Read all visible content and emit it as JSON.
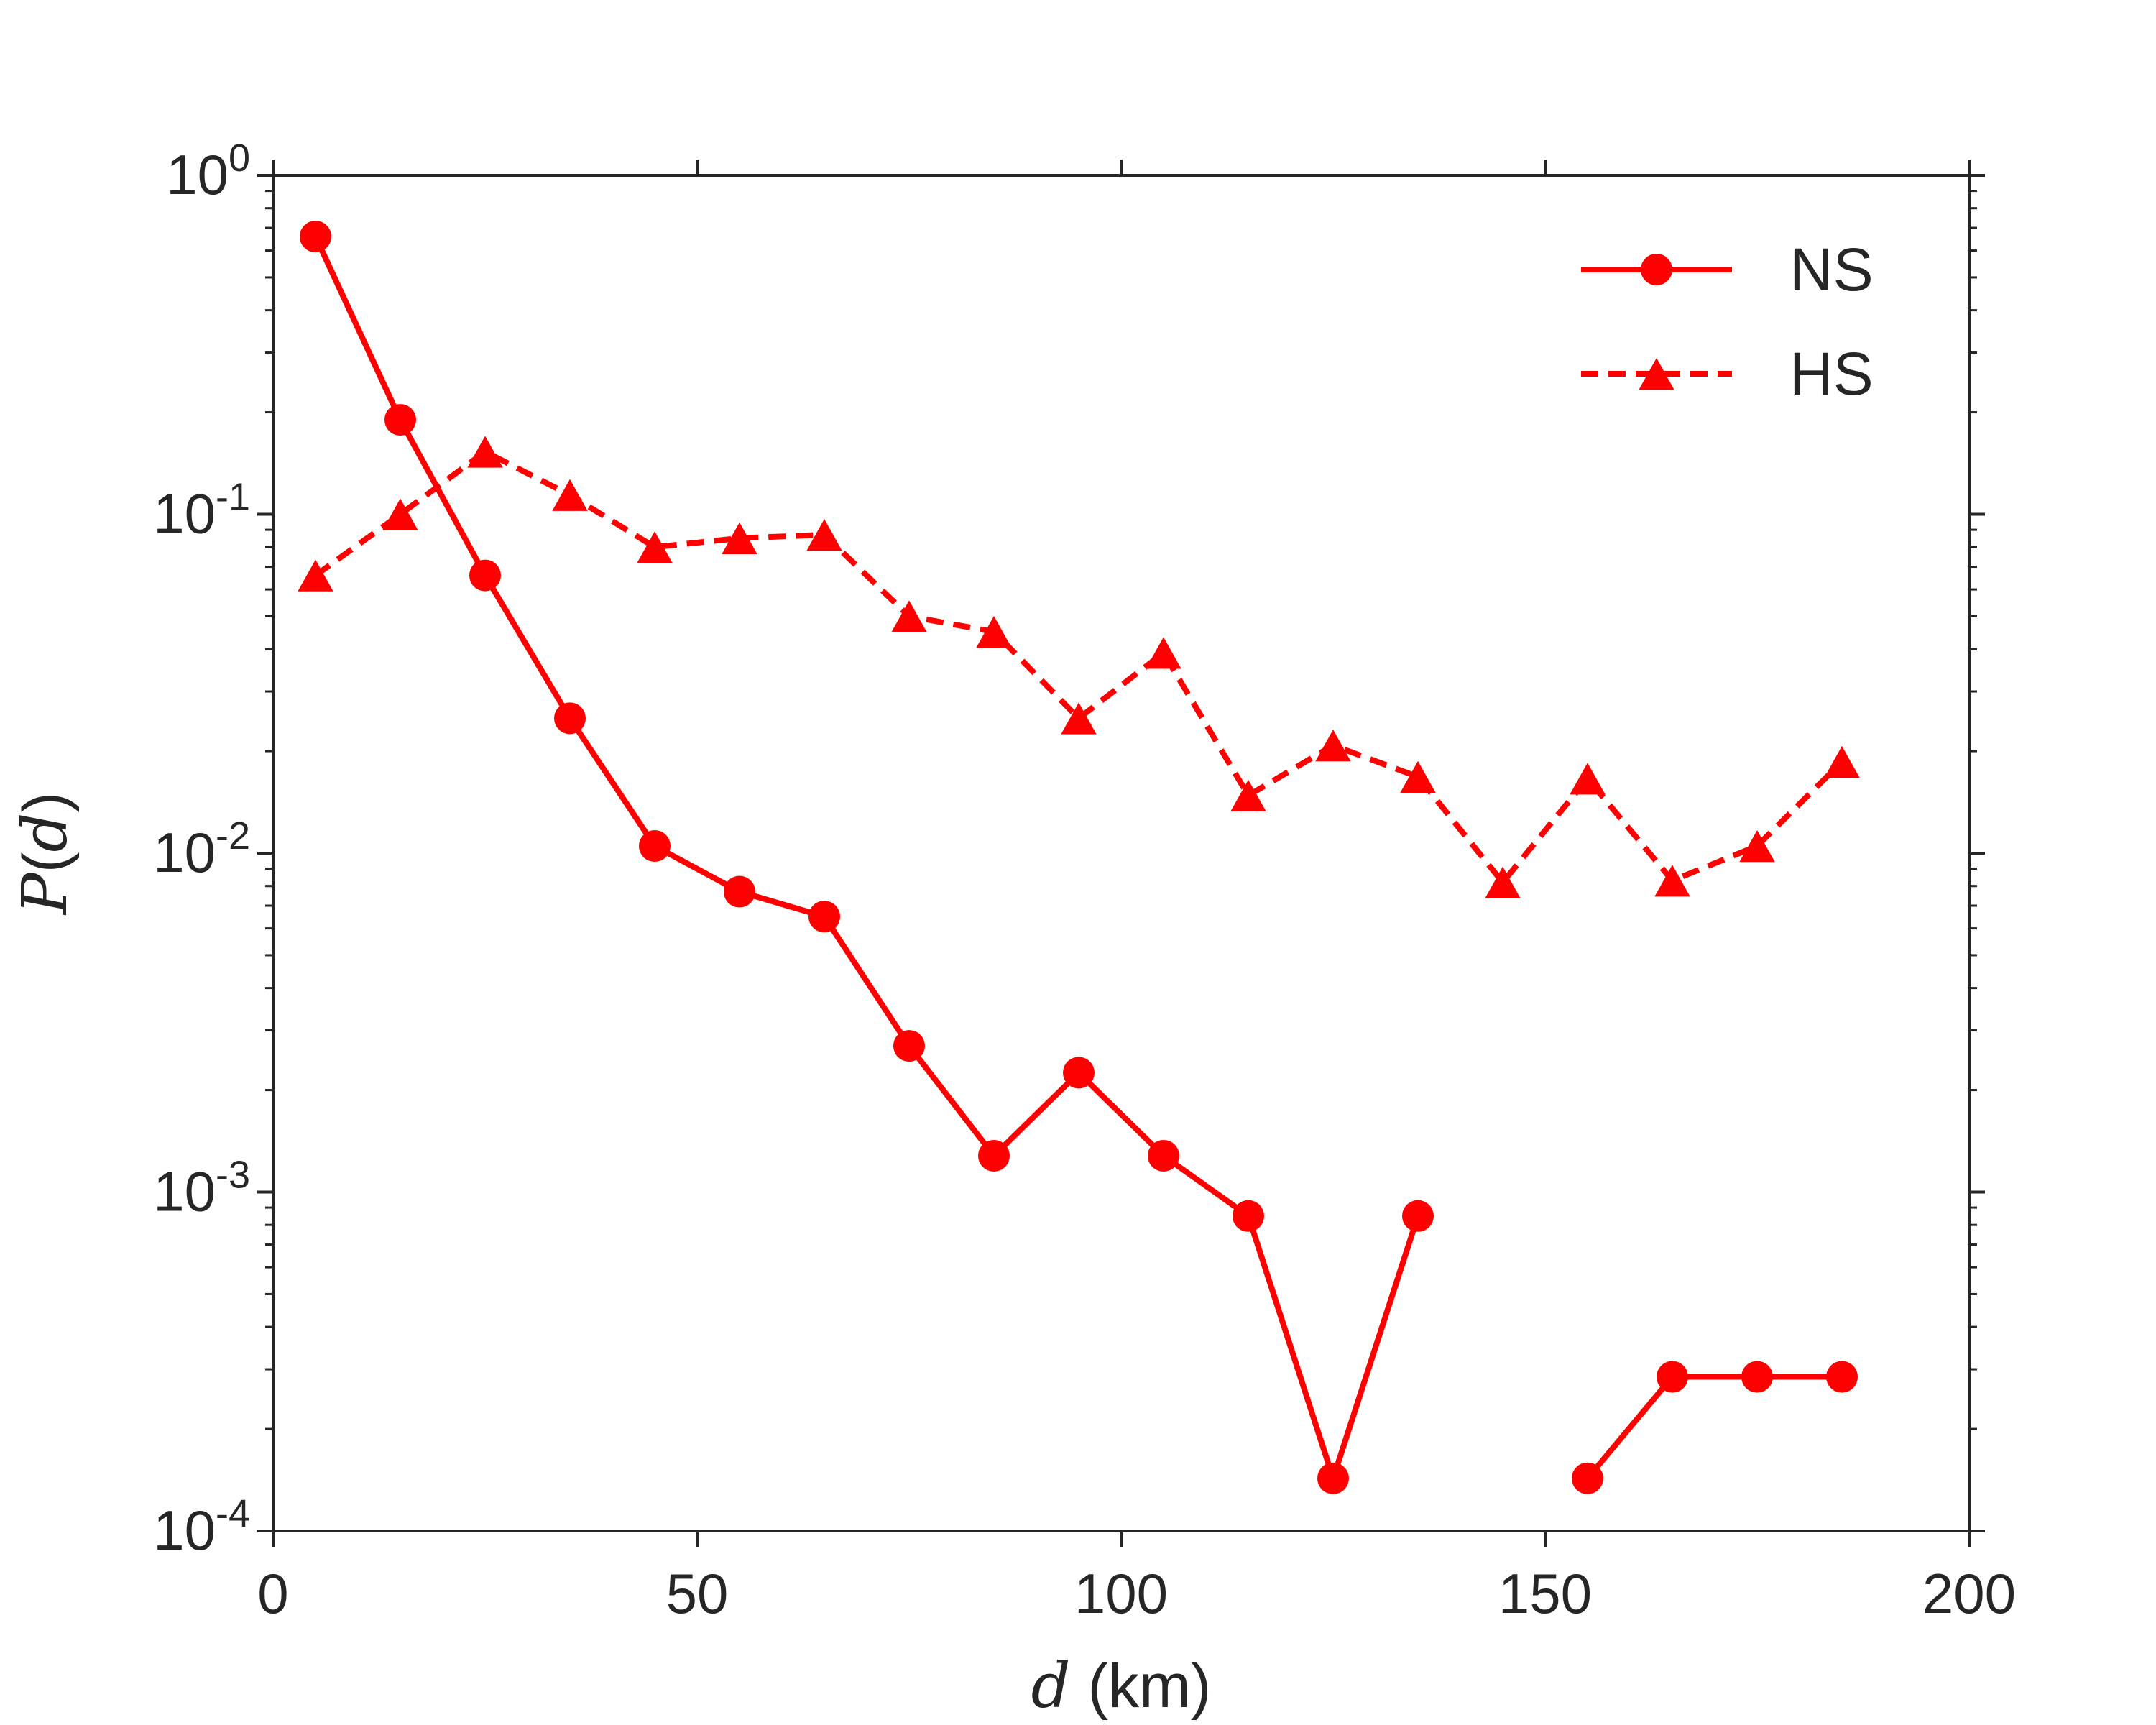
{
  "chart_data": {
    "type": "line",
    "xlabel_var": "d",
    "xlabel_unit": " (km)",
    "ylabel_var": "P",
    "ylabel_arg": "d",
    "xlim": [
      0,
      200
    ],
    "ylim": [
      0.0001,
      1
    ],
    "yscale": "log",
    "grid": false,
    "legend_position": "top-right",
    "x_ticks": [
      {
        "value": 0,
        "label": "0"
      },
      {
        "value": 50,
        "label": "50"
      },
      {
        "value": 100,
        "label": "100"
      },
      {
        "value": 150,
        "label": "150"
      },
      {
        "value": 200,
        "label": "200"
      }
    ],
    "y_ticks": [
      {
        "value": 1,
        "base": "10",
        "exp": "0"
      },
      {
        "value": 0.1,
        "base": "10",
        "exp": "-1"
      },
      {
        "value": 0.01,
        "base": "10",
        "exp": "-2"
      },
      {
        "value": 0.001,
        "base": "10",
        "exp": "-3"
      },
      {
        "value": 0.0001,
        "base": "10",
        "exp": "-4"
      }
    ],
    "series": [
      {
        "name": "NS",
        "color": "#ff0000",
        "line_style": "solid",
        "marker": "circle",
        "points": [
          {
            "x": 5,
            "y": 0.66
          },
          {
            "x": 15,
            "y": 0.19
          },
          {
            "x": 25,
            "y": 0.066
          },
          {
            "x": 35,
            "y": 0.025
          },
          {
            "x": 45,
            "y": 0.0105
          },
          {
            "x": 55,
            "y": 0.0077
          },
          {
            "x": 65,
            "y": 0.0065
          },
          {
            "x": 75,
            "y": 0.0027
          },
          {
            "x": 85,
            "y": 0.00128
          },
          {
            "x": 95,
            "y": 0.00225
          },
          {
            "x": 105,
            "y": 0.00128
          },
          {
            "x": 115,
            "y": 0.00085
          },
          {
            "x": 125,
            "y": 0.000143
          },
          {
            "x": 135,
            "y": 0.00085
          },
          {
            "x": 145,
            "y": null
          },
          {
            "x": 155,
            "y": 0.000143
          },
          {
            "x": 165,
            "y": 0.000285
          },
          {
            "x": 175,
            "y": 0.000285
          },
          {
            "x": 185,
            "y": 0.000285
          }
        ]
      },
      {
        "name": "HS",
        "color": "#ff0000",
        "line_style": "dashed",
        "marker": "triangle",
        "points": [
          {
            "x": 5,
            "y": 0.066
          },
          {
            "x": 15,
            "y": 0.1
          },
          {
            "x": 25,
            "y": 0.153
          },
          {
            "x": 35,
            "y": 0.114
          },
          {
            "x": 45,
            "y": 0.08
          },
          {
            "x": 55,
            "y": 0.085
          },
          {
            "x": 65,
            "y": 0.087
          },
          {
            "x": 75,
            "y": 0.05
          },
          {
            "x": 85,
            "y": 0.045
          },
          {
            "x": 95,
            "y": 0.025
          },
          {
            "x": 105,
            "y": 0.039
          },
          {
            "x": 115,
            "y": 0.0148
          },
          {
            "x": 125,
            "y": 0.0208
          },
          {
            "x": 135,
            "y": 0.0168
          },
          {
            "x": 145,
            "y": 0.0082
          },
          {
            "x": 155,
            "y": 0.0166
          },
          {
            "x": 165,
            "y": 0.0083
          },
          {
            "x": 175,
            "y": 0.0105
          },
          {
            "x": 185,
            "y": 0.0186
          }
        ]
      }
    ]
  }
}
